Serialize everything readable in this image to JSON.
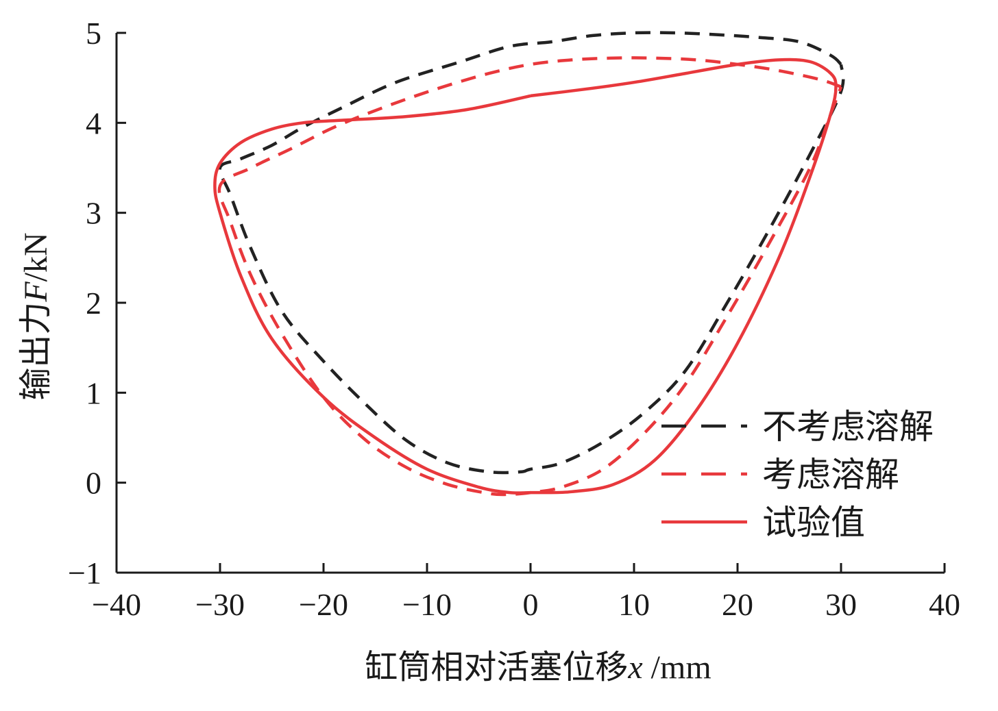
{
  "chart_data": {
    "type": "line",
    "xlabel": {
      "text": "缸筒相对活塞位移",
      "var": "x",
      "unit": " /mm"
    },
    "ylabel": {
      "text": "输出力",
      "var": "F",
      "unit": "/kN"
    },
    "xlim": [
      -40,
      40
    ],
    "ylim": [
      -1,
      5
    ],
    "xticks": [
      -40,
      -30,
      -20,
      -10,
      0,
      10,
      20,
      30,
      40
    ],
    "yticks": [
      -1,
      0,
      1,
      2,
      3,
      4,
      5
    ],
    "xtick_labels": [
      "−40",
      "−30",
      "−20",
      "−10",
      "0",
      "10",
      "20",
      "30",
      "40"
    ],
    "ytick_labels": [
      "−1",
      "0",
      "1",
      "2",
      "3",
      "4",
      "5"
    ],
    "grid": false,
    "legend_position": "bottom-right",
    "series": [
      {
        "name": "不考虑溶解",
        "color": "#222222",
        "dash": true,
        "x": [
          30,
          29,
          26,
          22,
          18,
          14,
          10,
          6,
          2,
          -2,
          -7,
          -13,
          -18,
          -22,
          -25,
          -28,
          -30,
          -29,
          -27,
          -24,
          -20,
          -16,
          -12,
          -8,
          -4,
          -1,
          0,
          3,
          7,
          11,
          15,
          19,
          23,
          27,
          30,
          30
        ],
        "y": [
          4.65,
          4.75,
          4.9,
          4.95,
          4.98,
          5.0,
          5.0,
          4.97,
          4.9,
          4.85,
          4.67,
          4.45,
          4.18,
          3.95,
          3.75,
          3.6,
          3.5,
          3.2,
          2.6,
          1.9,
          1.35,
          0.88,
          0.47,
          0.22,
          0.12,
          0.12,
          0.15,
          0.22,
          0.45,
          0.78,
          1.25,
          2.0,
          2.8,
          3.65,
          4.35,
          4.65
        ]
      },
      {
        "name": "考虑溶解",
        "color": "#e8383c",
        "dash": true,
        "x": [
          30,
          28,
          24,
          20,
          16,
          12,
          8,
          4,
          0,
          -4,
          -9,
          -14,
          -19,
          -23,
          -27,
          -30,
          -29,
          -27,
          -24,
          -20,
          -16,
          -12,
          -8,
          -4,
          -2,
          0,
          3,
          7,
          11,
          15,
          19,
          23,
          27,
          29,
          30
        ],
        "y": [
          4.4,
          4.48,
          4.58,
          4.65,
          4.7,
          4.72,
          4.72,
          4.7,
          4.65,
          4.55,
          4.38,
          4.18,
          3.95,
          3.72,
          3.5,
          3.3,
          2.9,
          2.3,
          1.65,
          0.95,
          0.48,
          0.17,
          -0.02,
          -0.12,
          -0.13,
          -0.11,
          -0.05,
          0.15,
          0.55,
          1.1,
          1.85,
          2.65,
          3.5,
          4.1,
          4.4
        ]
      },
      {
        "name": "试验值",
        "color": "#e8383c",
        "dash": false,
        "x": [
          0,
          5,
          10,
          15,
          20,
          24,
          27,
          29,
          29.5,
          29,
          27,
          24,
          20,
          16,
          12,
          8,
          4,
          1,
          0,
          -2,
          -5,
          -10,
          -15,
          -20,
          -25,
          -28,
          -30,
          -30.5,
          -30,
          -28,
          -25,
          -22,
          -18,
          -12,
          -6,
          0
        ],
        "y": [
          4.3,
          4.37,
          4.45,
          4.55,
          4.65,
          4.7,
          4.68,
          4.55,
          4.4,
          4.1,
          3.4,
          2.5,
          1.55,
          0.8,
          0.25,
          -0.02,
          -0.1,
          -0.11,
          -0.11,
          -0.11,
          -0.05,
          0.15,
          0.5,
          0.95,
          1.6,
          2.3,
          3.0,
          3.3,
          3.55,
          3.78,
          3.93,
          4.0,
          4.03,
          4.07,
          4.15,
          4.3
        ]
      }
    ]
  }
}
